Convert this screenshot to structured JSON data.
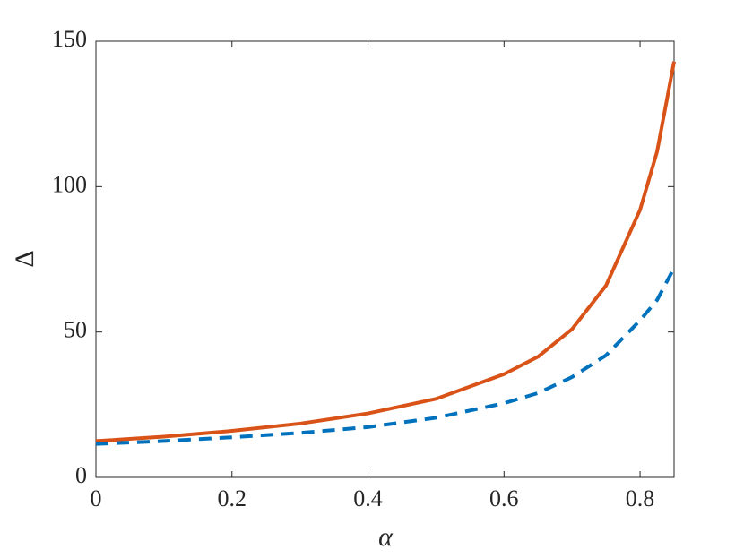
{
  "chart_data": {
    "type": "line",
    "x_label": "α",
    "y_label": "Δ",
    "x": [
      0,
      0.1,
      0.2,
      0.3,
      0.4,
      0.5,
      0.6,
      0.65,
      0.7,
      0.75,
      0.8,
      0.825,
      0.85
    ],
    "series": [
      {
        "color": "#d95319",
        "dash": false,
        "values": [
          12.5,
          14,
          16,
          18.5,
          22,
          27,
          35.5,
          41.5,
          51,
          66,
          92,
          112,
          143
        ]
      },
      {
        "color": "#0072bd",
        "dash": true,
        "values": [
          11.5,
          12.5,
          13.8,
          15.3,
          17.3,
          20.5,
          25.5,
          29,
          34.5,
          42,
          54,
          61,
          72
        ]
      }
    ],
    "xlim": [
      0,
      0.85
    ],
    "ylim": [
      0,
      150
    ],
    "xticks": [
      0,
      0.2,
      0.4,
      0.6,
      0.8
    ],
    "yticks": [
      0,
      50,
      100,
      150
    ]
  }
}
